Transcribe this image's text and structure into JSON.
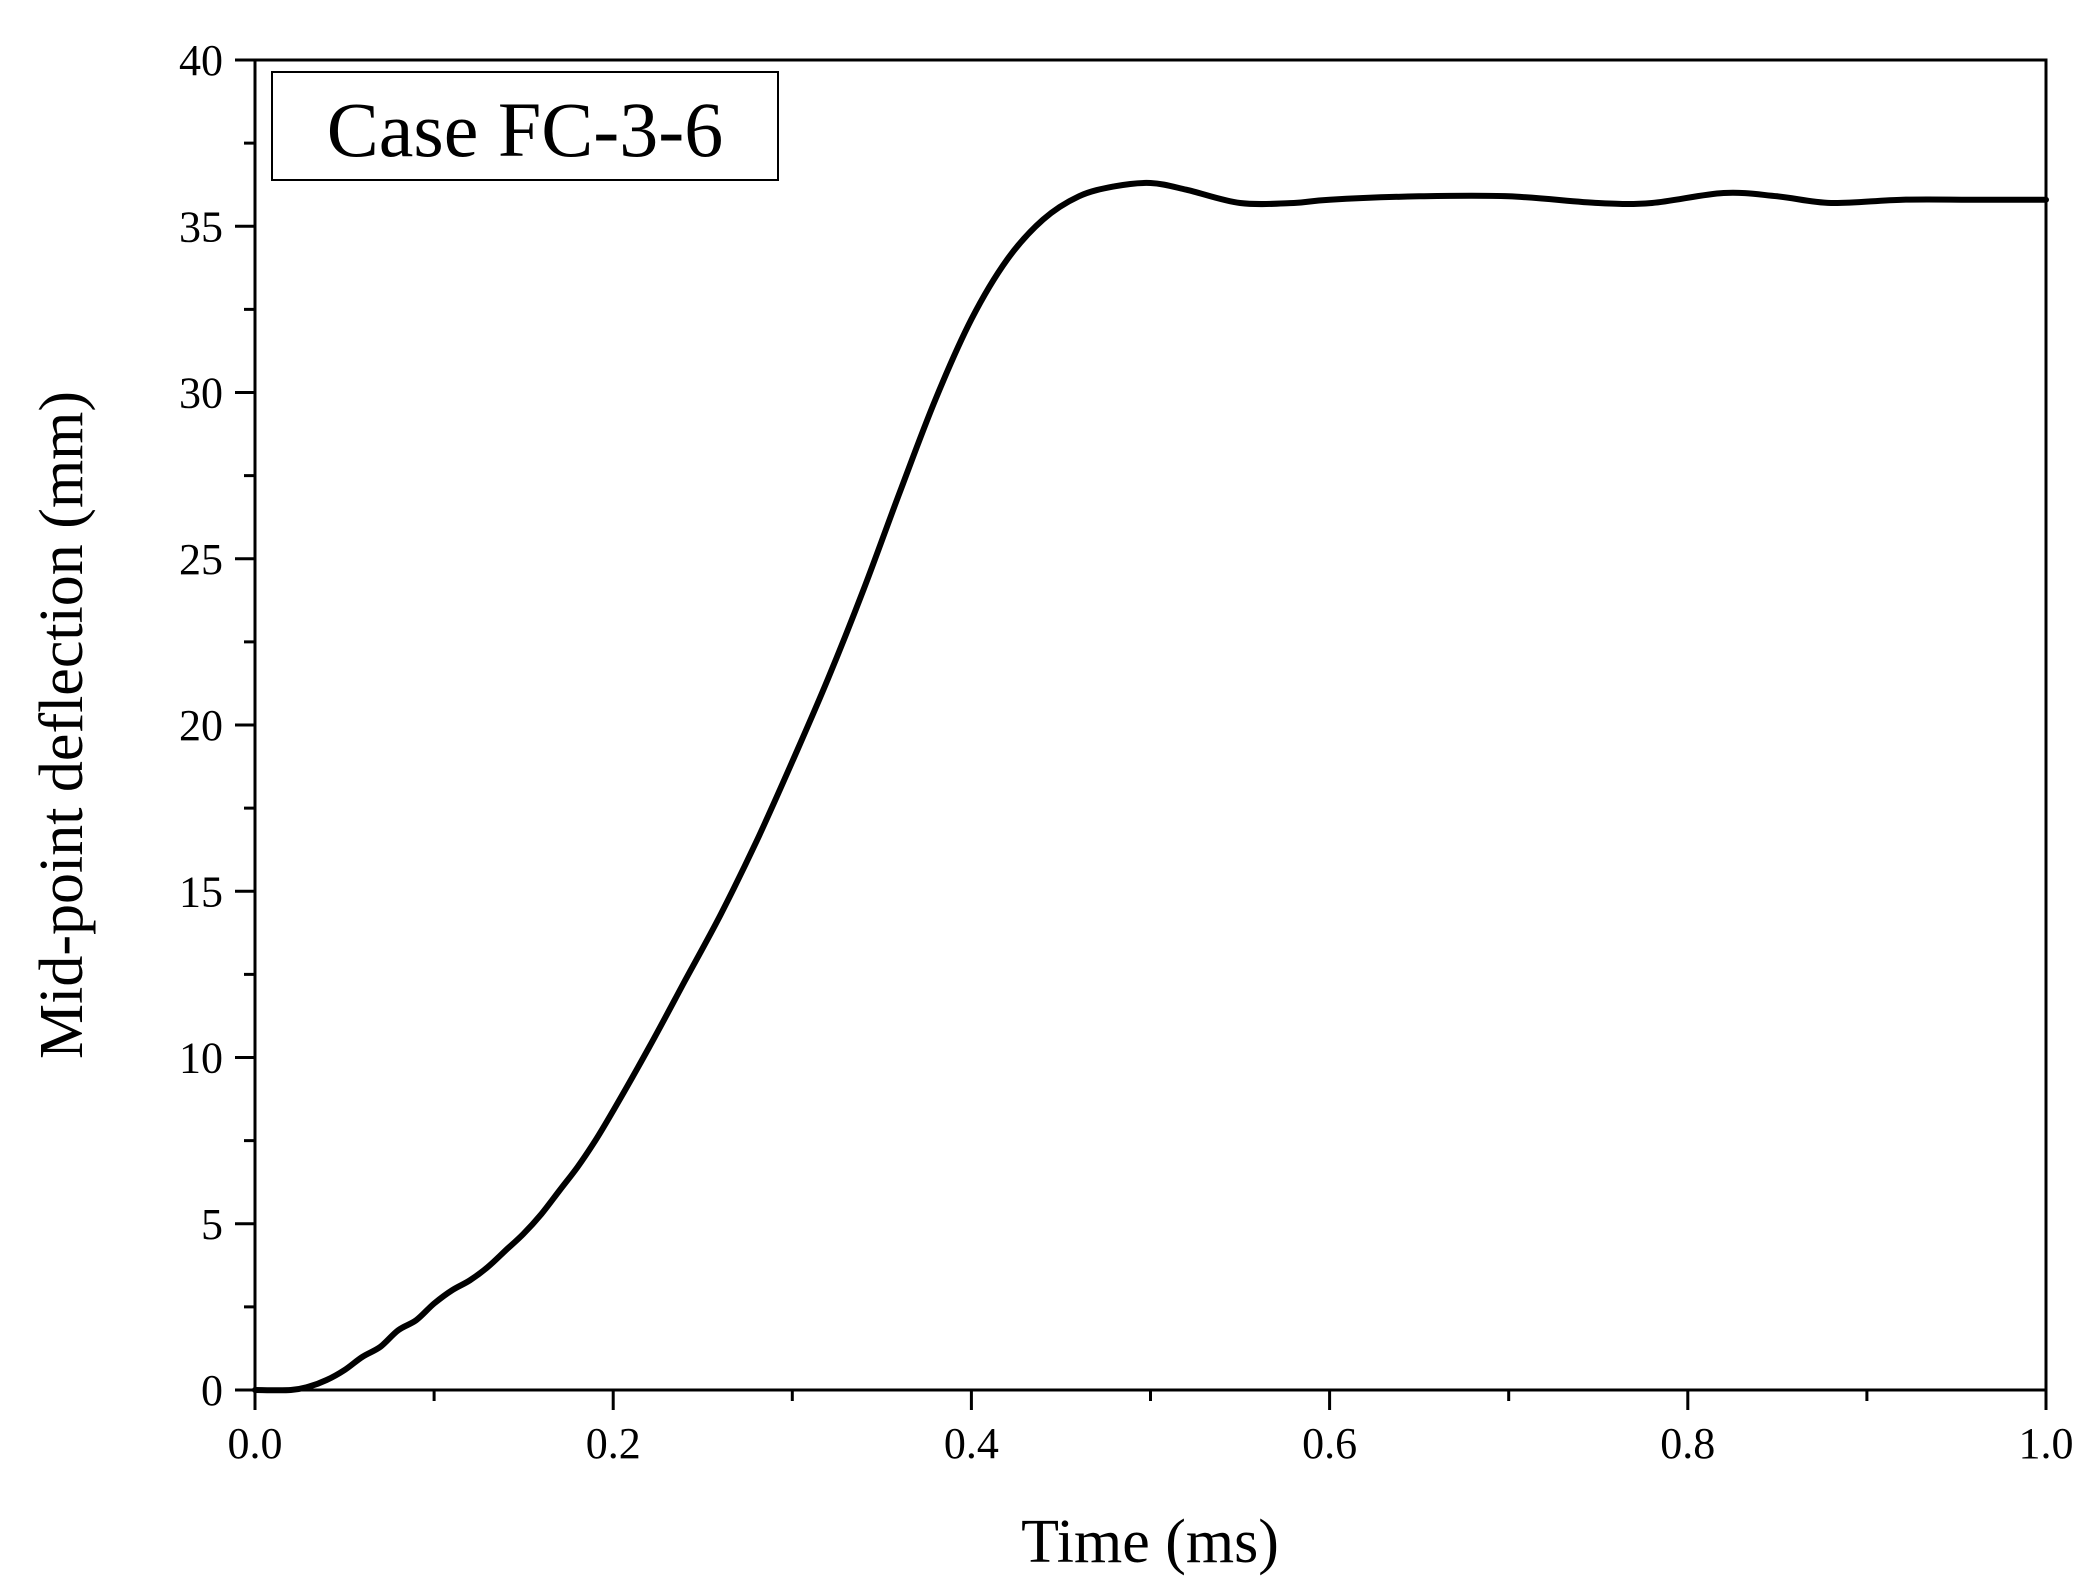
{
  "chart_data": {
    "type": "line",
    "title": "",
    "xlabel": "Time (ms)",
    "ylabel": "Mid-point deflection (mm)",
    "xlim": [
      0.0,
      1.0
    ],
    "ylim": [
      0,
      40
    ],
    "x_ticks": [
      "0.0",
      "0.2",
      "0.4",
      "0.6",
      "0.8",
      "1.0"
    ],
    "y_ticks": [
      "0",
      "5",
      "10",
      "15",
      "20",
      "25",
      "30",
      "35",
      "40"
    ],
    "grid": false,
    "legend": {
      "position": "top-left",
      "entries": [
        "Case FC-3-6"
      ]
    },
    "line_color": "#000000",
    "series": [
      {
        "x": [
          0.0,
          0.02,
          0.03,
          0.04,
          0.05,
          0.06,
          0.07,
          0.08,
          0.09,
          0.1,
          0.11,
          0.12,
          0.13,
          0.14,
          0.15,
          0.16,
          0.17,
          0.18,
          0.19,
          0.2,
          0.22,
          0.24,
          0.26,
          0.28,
          0.3,
          0.32,
          0.34,
          0.36,
          0.38,
          0.4,
          0.42,
          0.44,
          0.46,
          0.48,
          0.5,
          0.52,
          0.55,
          0.58,
          0.6,
          0.65,
          0.7,
          0.75,
          0.78,
          0.82,
          0.85,
          0.88,
          0.92,
          0.96,
          1.0
        ],
        "y": [
          0.0,
          0.0,
          0.1,
          0.3,
          0.6,
          1.0,
          1.3,
          1.8,
          2.1,
          2.6,
          3.0,
          3.3,
          3.7,
          4.2,
          4.7,
          5.3,
          6.0,
          6.7,
          7.5,
          8.4,
          10.3,
          12.3,
          14.3,
          16.5,
          18.9,
          21.4,
          24.1,
          27.0,
          29.8,
          32.2,
          34.0,
          35.2,
          35.9,
          36.2,
          36.3,
          36.1,
          35.7,
          35.7,
          35.8,
          35.9,
          35.9,
          35.7,
          35.7,
          36.0,
          35.9,
          35.7,
          35.8,
          35.8,
          35.8
        ]
      }
    ]
  }
}
